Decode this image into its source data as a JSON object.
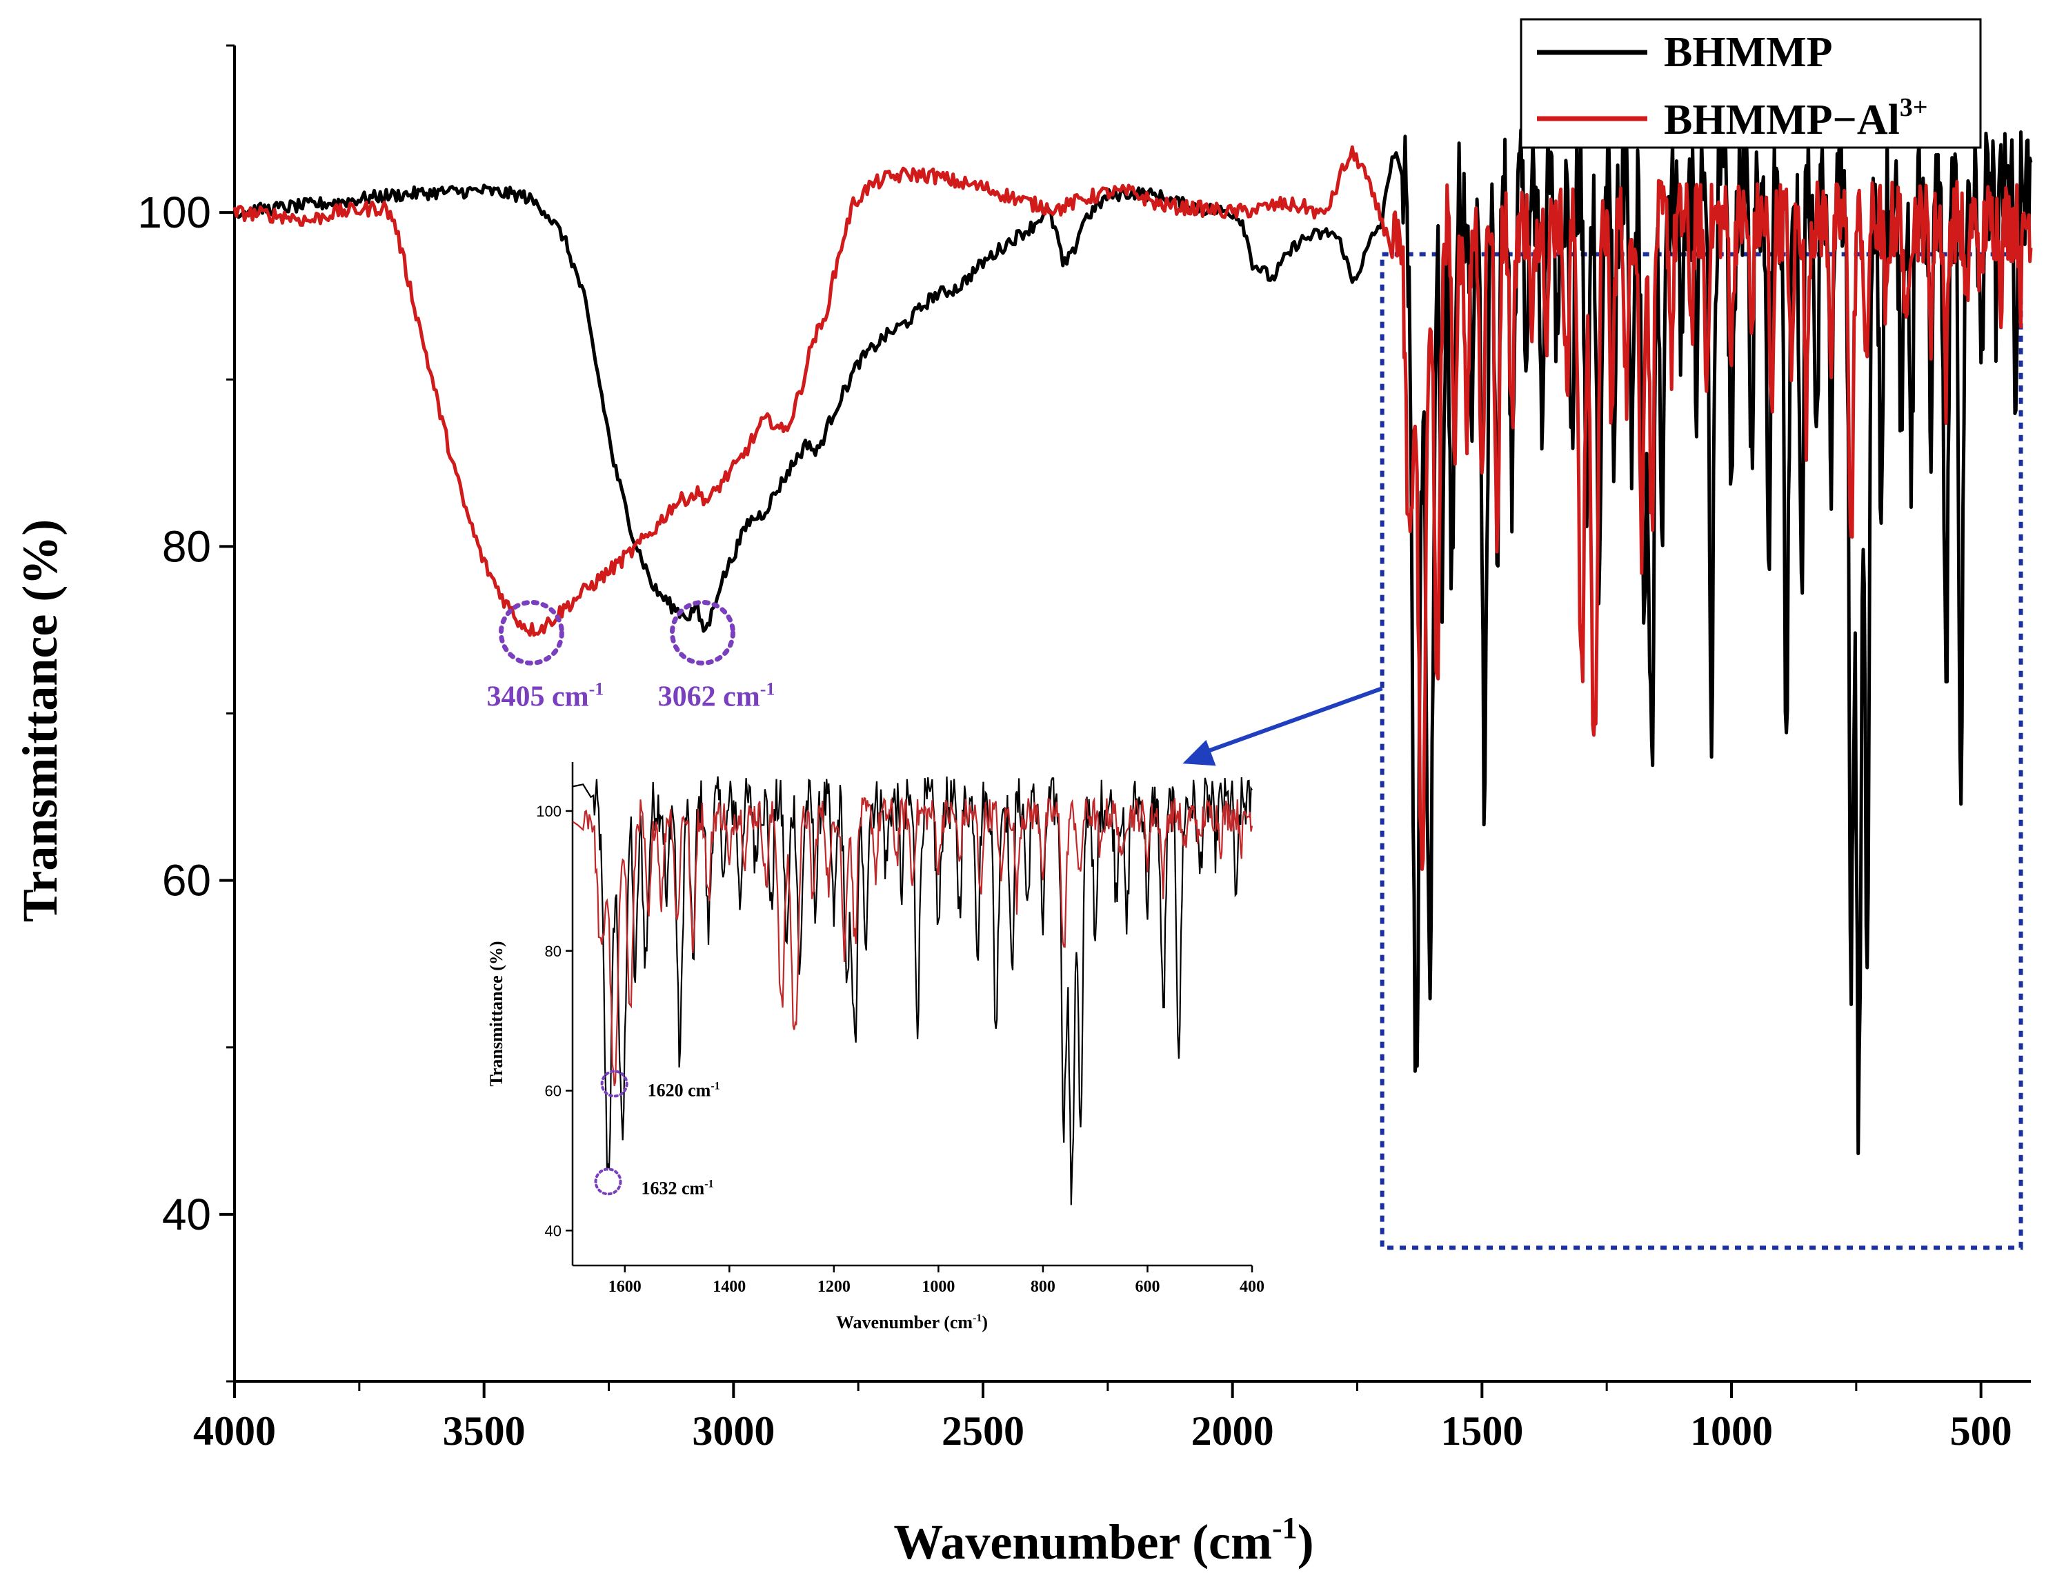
{
  "chart_data": [
    {
      "type": "line",
      "xlabel": "Wavenumber (cm",
      "xlabel_sup": "-1",
      "xlabel_end": ")",
      "ylabel": "Transmittance (%)",
      "xlim": [
        4000,
        400
      ],
      "ylim": [
        30,
        110
      ],
      "x_ticks": [
        {
          "value": 4000,
          "label": "4000"
        },
        {
          "value": 3500,
          "label": "3500"
        },
        {
          "value": 3000,
          "label": "3000"
        },
        {
          "value": 2500,
          "label": "2500"
        },
        {
          "value": 2000,
          "label": "2000"
        },
        {
          "value": 1500,
          "label": "1500"
        },
        {
          "value": 1000,
          "label": "1000"
        },
        {
          "value": 500,
          "label": "500"
        }
      ],
      "y_ticks": [
        {
          "value": 100,
          "label": "100"
        },
        {
          "value": 80,
          "label": "80"
        },
        {
          "value": 60,
          "label": "60"
        },
        {
          "value": 40,
          "label": "40"
        }
      ],
      "legend": {
        "position": "top-right",
        "entries": [
          {
            "label": "BHMMP",
            "sup": ""
          },
          {
            "label": "BHMMP−Al",
            "sup": "3+"
          }
        ]
      },
      "series": [
        {
          "name": "BHMMP",
          "color": "#000000",
          "points": [
            [
              4000,
              100
            ],
            [
              3900,
              100.3
            ],
            [
              3800,
              100.6
            ],
            [
              3700,
              101
            ],
            [
              3600,
              101.2
            ],
            [
              3500,
              101.3
            ],
            [
              3420,
              101
            ],
            [
              3380,
              100.2
            ],
            [
              3340,
              98.5
            ],
            [
              3300,
              95
            ],
            [
              3270,
              90
            ],
            [
              3240,
              85
            ],
            [
              3200,
              80.5
            ],
            [
              3160,
              77.5
            ],
            [
              3120,
              76.3
            ],
            [
              3090,
              75.8
            ],
            [
              3075,
              76.5
            ],
            [
              3062,
              75
            ],
            [
              3050,
              75.3
            ],
            [
              3030,
              77.5
            ],
            [
              3000,
              79.5
            ],
            [
              2970,
              81.5
            ],
            [
              2940,
              82
            ],
            [
              2910,
              83.5
            ],
            [
              2880,
              85
            ],
            [
              2850,
              86.3
            ],
            [
              2835,
              85.5
            ],
            [
              2820,
              86.5
            ],
            [
              2800,
              88
            ],
            [
              2750,
              91
            ],
            [
              2700,
              92.5
            ],
            [
              2650,
              93.5
            ],
            [
              2600,
              95
            ],
            [
              2550,
              95.5
            ],
            [
              2500,
              97
            ],
            [
              2450,
              98.2
            ],
            [
              2400,
              99.2
            ],
            [
              2370,
              100.2
            ],
            [
              2350,
              98.5
            ],
            [
              2340,
              96.8
            ],
            [
              2320,
              97.5
            ],
            [
              2300,
              99.5
            ],
            [
              2250,
              101
            ],
            [
              2200,
              101.2
            ],
            [
              2150,
              101
            ],
            [
              2100,
              100.5
            ],
            [
              2050,
              100.2
            ],
            [
              2000,
              100
            ],
            [
              1980,
              99.5
            ],
            [
              1960,
              97
            ],
            [
              1920,
              96
            ],
            [
              1900,
              97
            ],
            [
              1870,
              98.2
            ],
            [
              1840,
              98.6
            ],
            [
              1800,
              98.8
            ],
            [
              1780,
              98
            ],
            [
              1760,
              95.8
            ],
            [
              1740,
              97
            ],
            [
              1720,
              98.5
            ],
            [
              1700,
              99.5
            ],
            [
              1690,
              101.5
            ],
            [
              1680,
              103.5
            ],
            [
              1670,
              103.2
            ]
          ]
        },
        {
          "name": "BHMMP−Al3+",
          "color": "#d11a1a",
          "points": [
            [
              4000,
              100
            ],
            [
              3900,
              99.8
            ],
            [
              3850,
              99.5
            ],
            [
              3800,
              100
            ],
            [
              3740,
              100.2
            ],
            [
              3700,
              100.3
            ],
            [
              3680,
              99.5
            ],
            [
              3660,
              97
            ],
            [
              3620,
              92
            ],
            [
              3580,
              87
            ],
            [
              3540,
              82.5
            ],
            [
              3500,
              79
            ],
            [
              3460,
              76.8
            ],
            [
              3430,
              75.5
            ],
            [
              3405,
              75
            ],
            [
              3380,
              75.2
            ],
            [
              3350,
              76
            ],
            [
              3300,
              77.3
            ],
            [
              3250,
              78.5
            ],
            [
              3200,
              79.8
            ],
            [
              3160,
              81
            ],
            [
              3120,
              82.5
            ],
            [
              3090,
              83
            ],
            [
              3070,
              83.2
            ],
            [
              3050,
              82.7
            ],
            [
              3020,
              84
            ],
            [
              2990,
              85
            ],
            [
              2960,
              86.5
            ],
            [
              2940,
              87.5
            ],
            [
              2920,
              87.5
            ],
            [
              2900,
              86.8
            ],
            [
              2880,
              88
            ],
            [
              2860,
              90
            ],
            [
              2840,
              92.5
            ],
            [
              2820,
              93.3
            ],
            [
              2800,
              96
            ],
            [
              2780,
              98.5
            ],
            [
              2760,
              100.5
            ],
            [
              2730,
              101.5
            ],
            [
              2700,
              102
            ],
            [
              2650,
              102.3
            ],
            [
              2600,
              102.2
            ],
            [
              2550,
              101.8
            ],
            [
              2500,
              101.5
            ],
            [
              2450,
              101
            ],
            [
              2400,
              100.5
            ],
            [
              2350,
              100.2
            ],
            [
              2300,
              100.8
            ],
            [
              2250,
              101.2
            ],
            [
              2200,
              101.2
            ],
            [
              2150,
              100.5
            ],
            [
              2100,
              100.3
            ],
            [
              2050,
              100.2
            ],
            [
              2000,
              100
            ],
            [
              1950,
              100.2
            ],
            [
              1900,
              100.5
            ],
            [
              1850,
              100.3
            ],
            [
              1820,
              99.8
            ],
            [
              1800,
              100.8
            ],
            [
              1780,
              102.5
            ],
            [
              1760,
              103.5
            ],
            [
              1740,
              102.8
            ],
            [
              1720,
              101
            ],
            [
              1700,
              99.5
            ],
            [
              1690,
              98.5
            ]
          ]
        }
      ],
      "zoom_box": {
        "x_range": [
          1700,
          420
        ],
        "y_range": [
          38,
          97.5
        ]
      },
      "annotations": [
        {
          "x": 3405,
          "y": 75,
          "label": "3405 cm",
          "sup": "-1"
        },
        {
          "x": 3062,
          "y": 75,
          "label": "3062 cm",
          "sup": "-1"
        }
      ],
      "callout_arrow": {
        "from": [
          1700,
          71.5
        ],
        "to": [
          2100,
          67
        ]
      }
    },
    {
      "type": "line",
      "role": "inset",
      "xlabel": "Wavenumber (cm",
      "xlabel_sup": "-1",
      "xlabel_end": ")",
      "ylabel": "Transmittance (%)",
      "xlim": [
        1700,
        400
      ],
      "ylim": [
        35,
        107
      ],
      "x_ticks": [
        {
          "value": 1600,
          "label": "1600"
        },
        {
          "value": 1400,
          "label": "1400"
        },
        {
          "value": 1200,
          "label": "1200"
        },
        {
          "value": 1000,
          "label": "1000"
        },
        {
          "value": 800,
          "label": "800"
        },
        {
          "value": 600,
          "label": "600"
        },
        {
          "value": 400,
          "label": "400"
        }
      ],
      "y_ticks": [
        {
          "value": 100,
          "label": "100"
        },
        {
          "value": 80,
          "label": "80"
        },
        {
          "value": 60,
          "label": "60"
        },
        {
          "value": 40,
          "label": "40"
        }
      ],
      "annotations": [
        {
          "x": 1620,
          "y": 61,
          "label": "1620 cm",
          "sup": "-1"
        },
        {
          "x": 1632,
          "y": 47,
          "label": "1632 cm",
          "sup": "-1"
        }
      ]
    }
  ]
}
